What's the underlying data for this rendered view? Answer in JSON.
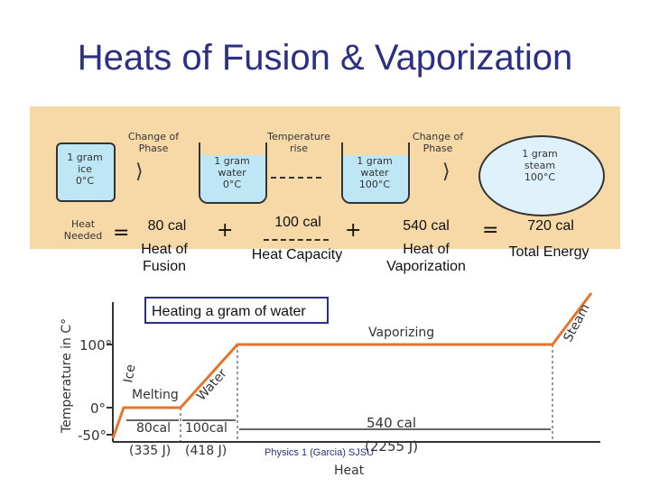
{
  "title": "Heats of Fusion & Vaporization",
  "diagram": {
    "change_phase_1": "Change of\nPhase",
    "temperature_rise": "Temperature\nrise",
    "change_phase_2": "Change of\nPhase",
    "ice_box": "1 gram\nice\n0°C",
    "water0": "1 gram\nwater\n0°C",
    "water100": "1 gram\nwater\n100°C",
    "steam": "1 gram\nsteam\n100°C",
    "heat_needed": "Heat\nNeeded"
  },
  "equation": {
    "fusion_value": "80 cal",
    "fusion_label": "Heat of\nFusion",
    "capacity_value": "100 cal",
    "capacity_label": "Heat Capacity",
    "vaporization_value": "540 cal",
    "vaporization_label": "Heat of\nVaporization",
    "total_value": "720 cal",
    "total_label": "Total Energy",
    "plus": "+",
    "equals": "="
  },
  "graph": {
    "caption": "Heating a gram of water",
    "ylabel": "Temperature in C°",
    "xlabel": "Heat",
    "ticks": [
      "100°",
      "0°",
      "-50°"
    ],
    "ice": "Ice",
    "melting": "Melting",
    "water": "Water",
    "vaporizing": "Vaporizing",
    "steam": "Steam",
    "seg_80": "80cal",
    "seg_100": "100cal",
    "seg_540": "540 cal",
    "j_335": "(335 J)",
    "j_418": "(418 J)",
    "j_2255": "(2255 J)"
  },
  "footer": "Physics 1 (Garcia) SJSU",
  "colors": {
    "title": "#2b2f86",
    "panel": "#f7d9a8",
    "curve": "#e8732a"
  }
}
